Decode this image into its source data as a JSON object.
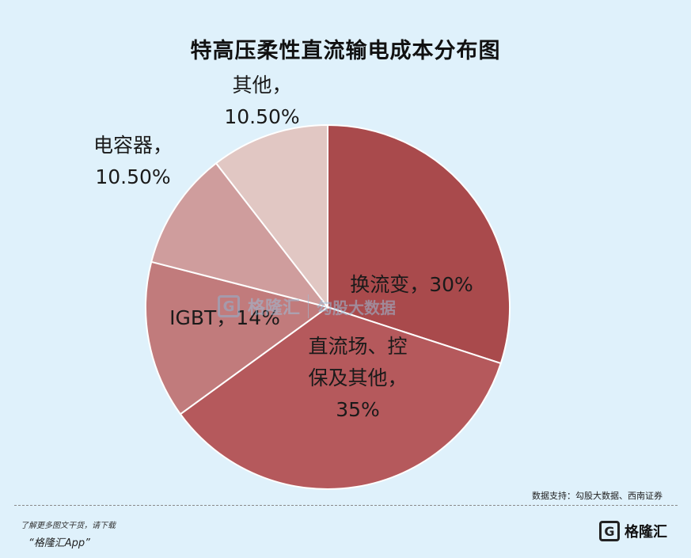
{
  "chart_data": {
    "type": "pie",
    "title": "特高压柔性直流输电成本分布图",
    "slices": [
      {
        "label_lines": [
          "换流变，30%"
        ],
        "value": 30,
        "color": "#a94a4c"
      },
      {
        "label_lines": [
          "直流场、控",
          "保及其他，",
          "35%"
        ],
        "value": 35,
        "color": "#b5595c"
      },
      {
        "label_lines": [
          "IGBT，14%"
        ],
        "value": 14,
        "color": "#c17b7c"
      },
      {
        "label_lines": [
          "电容器，",
          "10.50%"
        ],
        "value": 10.5,
        "color": "#cf9d9d"
      },
      {
        "label_lines": [
          "其他，",
          "10.50%"
        ],
        "value": 10.5,
        "color": "#e1c7c3"
      }
    ]
  },
  "source": "数据支持：勾股大数据、西南证券",
  "watermark": {
    "logo": "G",
    "text": "格隆汇",
    "text2": "勾股大数据"
  },
  "footer": {
    "line1": "了解更多图文干货，请下载",
    "line2": "“格隆汇App”"
  },
  "brand": {
    "logo": "G",
    "text": "格隆汇"
  }
}
